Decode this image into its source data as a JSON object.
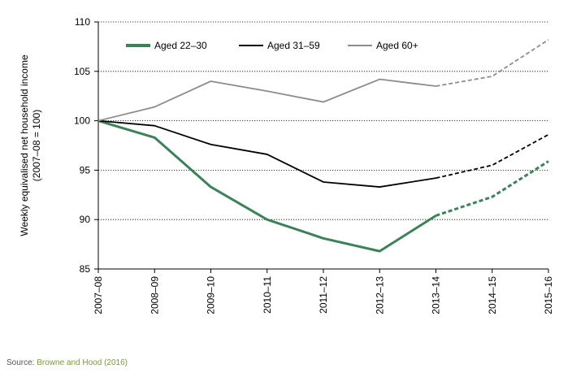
{
  "chart_data": {
    "type": "line",
    "ylabel_lines": [
      "Weekly equivalised net household income",
      "(2007–08 = 100)"
    ],
    "xlabel": "",
    "ylim": [
      85,
      110
    ],
    "yticks": [
      85,
      90,
      95,
      100,
      105,
      110
    ],
    "categories": [
      "2007–08",
      "2008–09",
      "2009–10",
      "2010–11",
      "2011–12",
      "2012–13",
      "2013–14",
      "2014–15",
      "2015–16"
    ],
    "projection_starts_at": "2013–14",
    "legend_position": "top",
    "grid": "dotted horizontal",
    "series": [
      {
        "name": "Aged 22–30",
        "color": "#3c8259",
        "values": [
          100,
          98.3,
          93.3,
          90.0,
          88.1,
          86.8,
          90.4,
          92.3,
          95.9
        ]
      },
      {
        "name": "Aged 31–59",
        "color": "#000000",
        "values": [
          100,
          99.5,
          97.6,
          96.6,
          93.8,
          93.3,
          94.2,
          95.5,
          98.6
        ]
      },
      {
        "name": "Aged 60+",
        "color": "#8c8c8c",
        "values": [
          100,
          101.4,
          104.0,
          103.0,
          101.9,
          104.2,
          103.5,
          104.5,
          108.2
        ]
      }
    ]
  },
  "source": {
    "label": "Source:",
    "reference": "Browne and Hood (2016)"
  }
}
